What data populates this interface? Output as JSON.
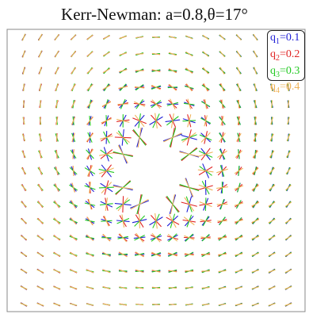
{
  "chart_data": {
    "type": "scatter",
    "title": "Kerr-Newman: a=0.8,θ=17°",
    "xlabel": "",
    "ylabel": "",
    "grid": false,
    "legend_position": "top-right",
    "series": [
      {
        "name_base": "q",
        "subscript": "1",
        "value_text": "=0.1",
        "q": 0.1,
        "color": "#1f1fd6"
      },
      {
        "name_base": "q",
        "subscript": "2",
        "value_text": "=0.2",
        "q": 0.2,
        "color": "#e02424"
      },
      {
        "name_base": "q",
        "subscript": "3",
        "value_text": "=0.3",
        "q": 0.3,
        "color": "#22c922"
      },
      {
        "name_base": "q",
        "subscript": "4",
        "value_text": "=0.4",
        "q": 0.4,
        "color": "#f0b45a"
      }
    ],
    "grid_points": 17,
    "shadow_radius": 2.1,
    "field_range": [
      -8,
      8
    ]
  }
}
